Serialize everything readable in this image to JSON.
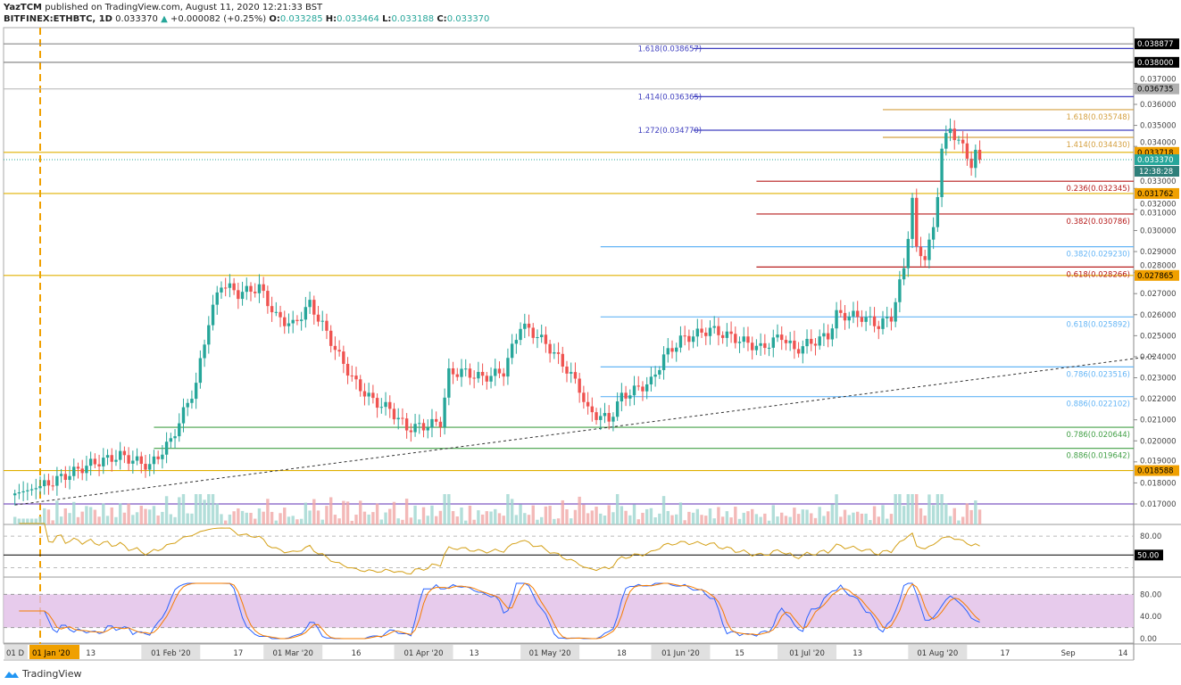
{
  "header": {
    "publisher": "YazTCM",
    "published_text": "published on TradingView.com, August 11, 2020 12:21:33 BST",
    "symbol": "BITFINEX:ETHBTC, 1D",
    "last": "0.033370",
    "change": "+0.000082 (+0.25%)",
    "o_label": "O:",
    "o": "0.033285",
    "h_label": "H:",
    "h": "0.033464",
    "l_label": "L:",
    "l": "0.033188",
    "c_label": "C:",
    "c": "0.033370"
  },
  "footer": {
    "brand": "TradingView"
  },
  "colors": {
    "up": "#26a69a",
    "down": "#ef5350",
    "rsi": "#d4a017",
    "stoch_k": "#2962ff",
    "stoch_d": "#f57c00",
    "stoch_band": "#e1bee7"
  },
  "chart_data": {
    "type": "candlestick",
    "price_range": [
      0.0165,
      0.0392
    ],
    "closes": [
      [
        "2019-12-26",
        0.0175
      ],
      [
        "2020-01-01",
        0.0178
      ],
      [
        "2020-01-13",
        0.0189
      ],
      [
        "2020-01-20",
        0.0193
      ],
      [
        "2020-01-27",
        0.0188
      ],
      [
        "2020-02-01",
        0.02
      ],
      [
        "2020-02-07",
        0.0227
      ],
      [
        "2020-02-10",
        0.0257
      ],
      [
        "2020-02-13",
        0.0275
      ],
      [
        "2020-02-17",
        0.027
      ],
      [
        "2020-02-22",
        0.0273
      ],
      [
        "2020-02-26",
        0.0259
      ],
      [
        "2020-03-01",
        0.0255
      ],
      [
        "2020-03-05",
        0.0265
      ],
      [
        "2020-03-08",
        0.0255
      ],
      [
        "2020-03-12",
        0.024
      ],
      [
        "2020-03-16",
        0.0227
      ],
      [
        "2020-03-20",
        0.0219
      ],
      [
        "2020-03-24",
        0.0215
      ],
      [
        "2020-03-28",
        0.0206
      ],
      [
        "2020-04-01",
        0.0207
      ],
      [
        "2020-04-05",
        0.0209
      ],
      [
        "2020-04-07",
        0.0232
      ],
      [
        "2020-04-10",
        0.0233
      ],
      [
        "2020-04-15",
        0.023
      ],
      [
        "2020-04-20",
        0.0233
      ],
      [
        "2020-04-24",
        0.0255
      ],
      [
        "2020-04-28",
        0.025
      ],
      [
        "2020-05-01",
        0.0244
      ],
      [
        "2020-05-05",
        0.0234
      ],
      [
        "2020-05-08",
        0.0225
      ],
      [
        "2020-05-10",
        0.0214
      ],
      [
        "2020-05-15",
        0.021
      ],
      [
        "2020-05-18",
        0.0221
      ],
      [
        "2020-05-25",
        0.0228
      ],
      [
        "2020-05-28",
        0.024
      ],
      [
        "2020-06-01",
        0.0248
      ],
      [
        "2020-06-08",
        0.0253
      ],
      [
        "2020-06-15",
        0.0248
      ],
      [
        "2020-06-20",
        0.0244
      ],
      [
        "2020-06-25",
        0.025
      ],
      [
        "2020-06-28",
        0.0243
      ],
      [
        "2020-07-01",
        0.0246
      ],
      [
        "2020-07-06",
        0.025
      ],
      [
        "2020-07-08",
        0.026
      ],
      [
        "2020-07-14",
        0.0259
      ],
      [
        "2020-07-18",
        0.0255
      ],
      [
        "2020-07-21",
        0.0259
      ],
      [
        "2020-07-24",
        0.0282
      ],
      [
        "2020-07-26",
        0.0315
      ],
      [
        "2020-07-27",
        0.029
      ],
      [
        "2020-07-29",
        0.0288
      ],
      [
        "2020-07-31",
        0.03
      ],
      [
        "2020-08-01",
        0.0318
      ],
      [
        "2020-08-02",
        0.034
      ],
      [
        "2020-08-04",
        0.0348
      ],
      [
        "2020-08-06",
        0.0343
      ],
      [
        "2020-08-08",
        0.0335
      ],
      [
        "2020-08-09",
        0.0332
      ],
      [
        "2020-08-10",
        0.0337
      ],
      [
        "2020-08-11",
        0.03337
      ]
    ],
    "y_ticks": [
      "0.017000",
      "0.018000",
      "0.019000",
      "0.020000",
      "0.021000",
      "0.022000",
      "0.023000",
      "0.024000",
      "0.025000",
      "0.026000",
      "0.027000",
      "0.028000",
      "0.029000",
      "0.030000",
      "0.031000",
      "0.032000",
      "0.033000",
      "0.034000",
      "0.035000",
      "0.036000",
      "0.037000"
    ],
    "x_ticks": [
      [
        "2019-12-26",
        "01 D"
      ],
      [
        "2020-01-13",
        "13"
      ],
      [
        "2020-02-01",
        "01 Feb '20"
      ],
      [
        "2020-02-17",
        "17"
      ],
      [
        "2020-03-01",
        "01 Mar '20"
      ],
      [
        "2020-03-16",
        "16"
      ],
      [
        "2020-04-01",
        "01 Apr '20"
      ],
      [
        "2020-04-13",
        "13"
      ],
      [
        "2020-05-01",
        "01 May '20"
      ],
      [
        "2020-05-18",
        "18"
      ],
      [
        "2020-06-01",
        "01 Jun '20"
      ],
      [
        "2020-06-15",
        "15"
      ],
      [
        "2020-07-01",
        "01 Jul '20"
      ],
      [
        "2020-07-13",
        "13"
      ],
      [
        "2020-08-01",
        "01 Aug '20"
      ],
      [
        "2020-08-17",
        "17"
      ],
      [
        "2020-09-01",
        "Sep"
      ],
      [
        "2020-09-14",
        "14"
      ]
    ],
    "x_highlight": [
      "2020-01-01",
      "01 Jan '20"
    ],
    "h_levels": [
      {
        "value": 0.038877,
        "label": "0.038877",
        "color": "#888",
        "bg": "#000"
      },
      {
        "value": 0.038,
        "label": "0.038000",
        "color": "#888",
        "bg": "#000"
      },
      {
        "value": 0.036735,
        "label": "0.036735",
        "color": "#bbb",
        "bg": "#b0b0b0"
      },
      {
        "value": 0.033718,
        "label": "0.033718",
        "color": "#e0b000",
        "bg": "#f0a000"
      },
      {
        "value": 0.031762,
        "label": "0.031762",
        "color": "#e0b000",
        "bg": "#f0a000"
      },
      {
        "value": 0.027865,
        "label": "0.027865",
        "color": "#e0b000",
        "bg": "#f0a000"
      },
      {
        "value": 0.018588,
        "label": "0.018588",
        "color": "#e0b000",
        "bg": "#f0a000"
      },
      {
        "value": 0.017,
        "label": "",
        "color": "#7e57c2",
        "bg": ""
      }
    ],
    "last_price": {
      "value": 0.03337,
      "label": "0.033370",
      "countdown": "12:38:28"
    },
    "fib_levels": [
      {
        "start": "2020-06-04",
        "value": 0.038657,
        "label": "1.618(0.038657)",
        "color": "#3f3fbf",
        "label_side": "left"
      },
      {
        "start": "2020-06-04",
        "value": 0.036365,
        "label": "1.414(0.036365)",
        "color": "#3f3fbf",
        "label_side": "left"
      },
      {
        "start": "2020-06-04",
        "value": 0.03477,
        "label": "1.272(0.034770)",
        "color": "#3f3fbf",
        "label_side": "left"
      },
      {
        "start": "2020-07-19",
        "value": 0.035748,
        "label": "1.618(0.035748)",
        "color": "#d4a040",
        "label_side": "right"
      },
      {
        "start": "2020-07-19",
        "value": 0.03443,
        "label": "1.414(0.034430)",
        "color": "#d4a040",
        "label_side": "right"
      },
      {
        "start": "2020-06-19",
        "value": 0.032345,
        "label": "0.236(0.032345)",
        "color": "#b71c1c",
        "label_side": "right"
      },
      {
        "start": "2020-06-19",
        "value": 0.030786,
        "label": "0.382(0.030786)",
        "color": "#b71c1c",
        "label_side": "right"
      },
      {
        "start": "2020-05-13",
        "value": 0.02923,
        "label": "0.382(0.029230)",
        "color": "#64b5f6",
        "label_side": "right"
      },
      {
        "start": "2020-06-19",
        "value": 0.028266,
        "label": "0.618(0.028266)",
        "color": "#b71c1c",
        "label_side": "right"
      },
      {
        "start": "2020-05-13",
        "value": 0.025892,
        "label": "0.618(0.025892)",
        "color": "#64b5f6",
        "label_side": "right"
      },
      {
        "start": "2020-05-13",
        "value": 0.023516,
        "label": "0.786(0.023516)",
        "color": "#64b5f6",
        "label_side": "right"
      },
      {
        "start": "2020-05-13",
        "value": 0.022102,
        "label": "0.886(0.022102)",
        "color": "#64b5f6",
        "label_side": "right"
      },
      {
        "start": "2020-01-28",
        "value": 0.020644,
        "label": "0.786(0.020644)",
        "color": "#43a047",
        "label_side": "right"
      },
      {
        "start": "2020-01-28",
        "value": 0.019642,
        "label": "0.886(0.019642)",
        "color": "#43a047",
        "label_side": "right"
      }
    ],
    "trendline": [
      [
        "2019-12-26",
        0.01695
      ],
      [
        "2020-09-22",
        0.02405
      ]
    ],
    "vertical_marker": "2020-01-01",
    "rsi": {
      "levels": [
        "80.00",
        "50.00"
      ],
      "highlight": "50.00"
    },
    "stoch_rsi": {
      "levels": [
        "80.00",
        "40.00",
        "0.00"
      ],
      "band": [
        20,
        80
      ]
    }
  }
}
